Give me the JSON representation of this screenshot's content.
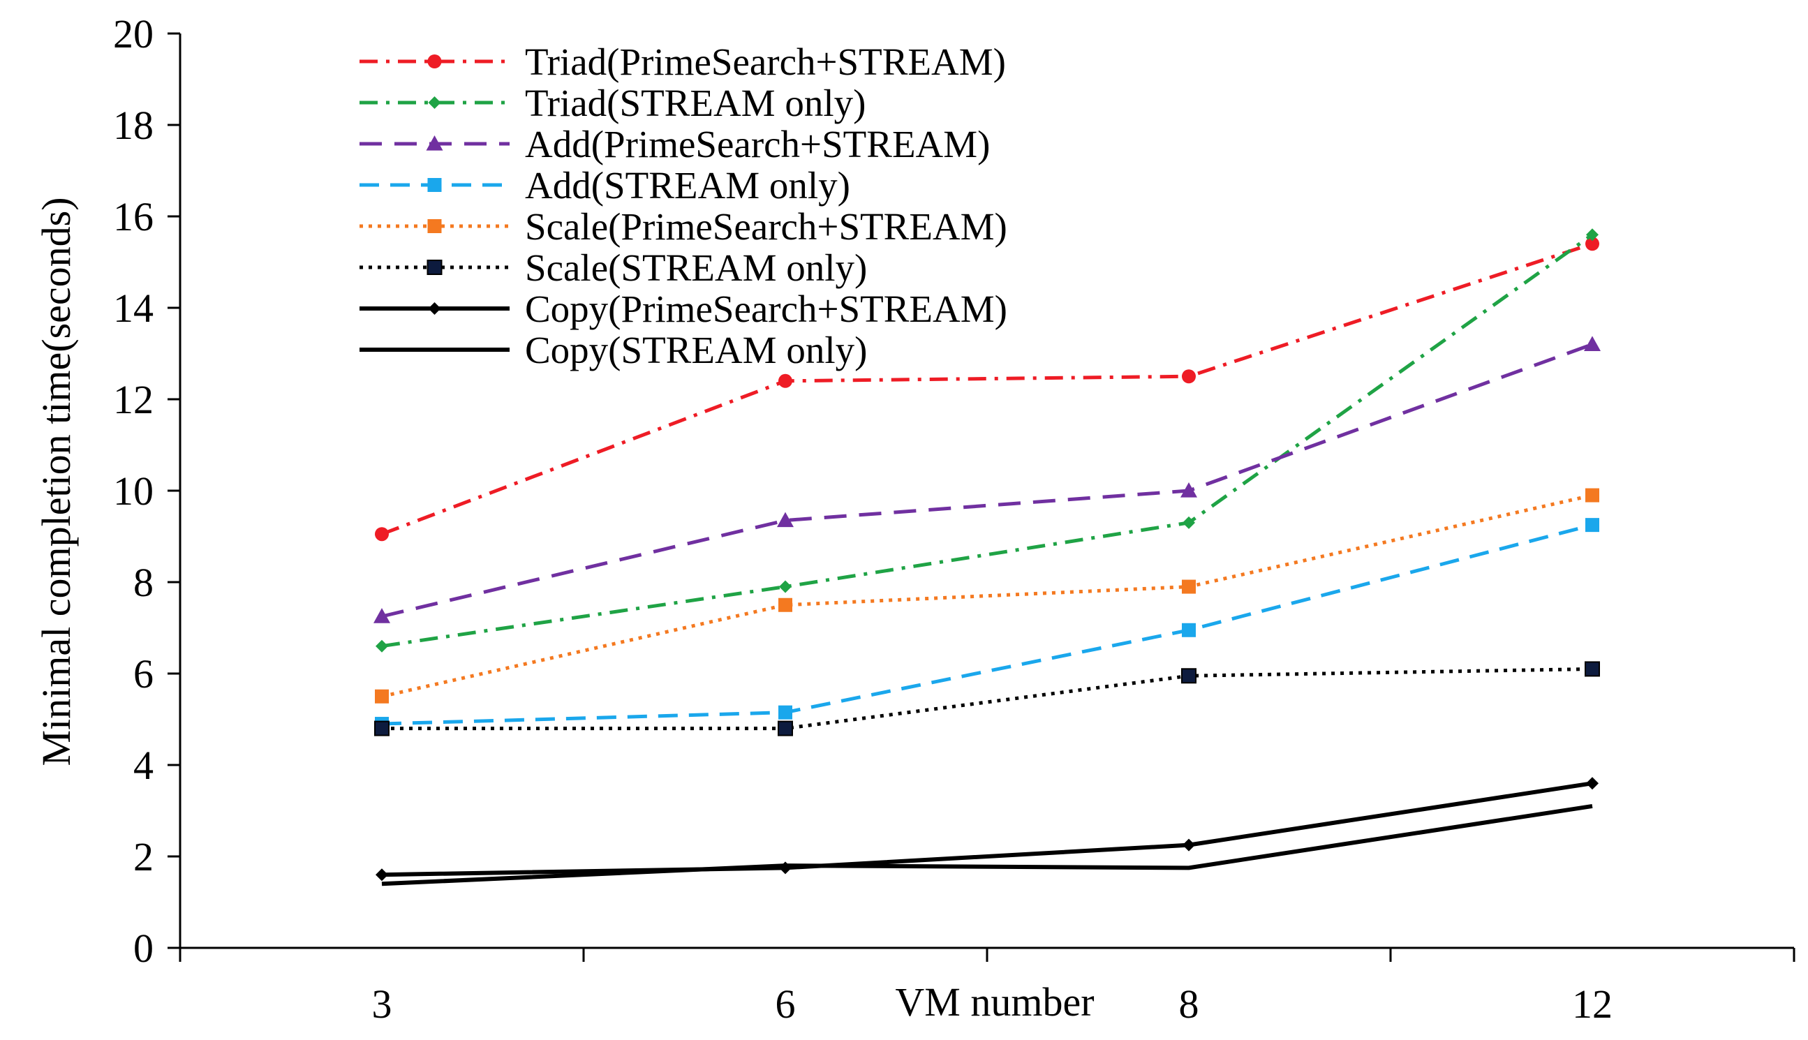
{
  "chart_data": {
    "type": "line",
    "title": "",
    "xlabel": "VM number",
    "ylabel": "Minimal completion time(seconds)",
    "categories": [
      "3",
      "6",
      "8",
      "12"
    ],
    "ylim": [
      0,
      20
    ],
    "yticks": [
      "0",
      "2",
      "4",
      "6",
      "8",
      "10",
      "12",
      "14",
      "16",
      "18",
      "20"
    ],
    "grid": false,
    "legend_position": "top-left",
    "series": [
      {
        "name": "Triad(PrimeSearch+STREAM)",
        "values": [
          9.05,
          12.4,
          12.5,
          15.4
        ],
        "color": "#ee1c25",
        "dash": "dash-dot",
        "marker": "circle"
      },
      {
        "name": "Triad(STREAM only)",
        "values": [
          6.6,
          7.9,
          9.3,
          15.6
        ],
        "color": "#1fa345",
        "dash": "dash-dot",
        "marker": "diamond"
      },
      {
        "name": "Add(PrimeSearch+STREAM)",
        "values": [
          7.25,
          9.35,
          10.0,
          13.2
        ],
        "color": "#7030a0",
        "dash": "long-dash",
        "marker": "triangle"
      },
      {
        "name": "Add(STREAM only)",
        "values": [
          4.9,
          5.15,
          6.95,
          9.25
        ],
        "color": "#1aa7ec",
        "dash": "dash",
        "marker": "square"
      },
      {
        "name": "Scale(PrimeSearch+STREAM)",
        "values": [
          5.5,
          7.5,
          7.9,
          9.9
        ],
        "color": "#f47920",
        "dash": "dot",
        "marker": "square"
      },
      {
        "name": "Scale(STREAM only)",
        "values": [
          4.8,
          4.8,
          5.95,
          6.1
        ],
        "color": "#000000",
        "dash": "dot",
        "marker": "square-navy"
      },
      {
        "name": "Copy(PrimeSearch+STREAM)",
        "values": [
          1.6,
          1.75,
          2.25,
          3.6
        ],
        "color": "#000000",
        "dash": "solid",
        "marker": "diamond"
      },
      {
        "name": "Copy(STREAM only)",
        "values": [
          1.4,
          1.8,
          1.75,
          3.1
        ],
        "color": "#000000",
        "dash": "solid",
        "marker": "none"
      }
    ]
  }
}
